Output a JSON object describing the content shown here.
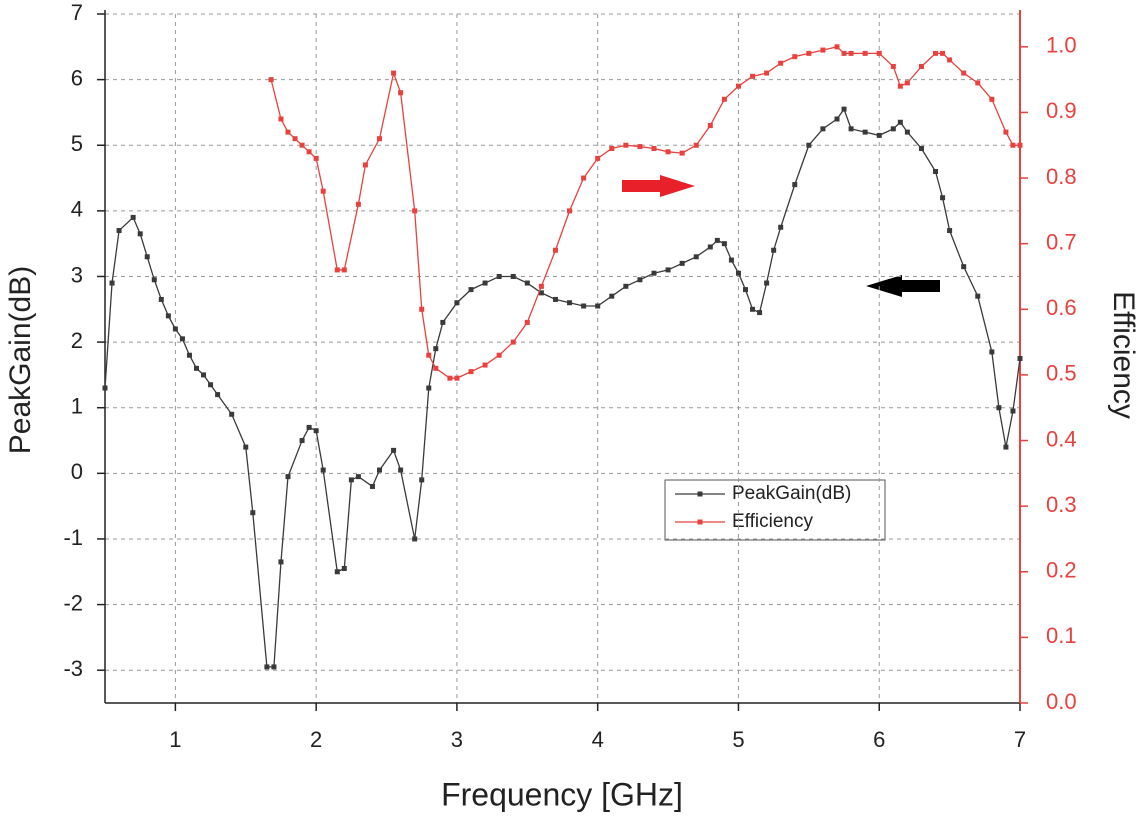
{
  "chart_data": {
    "type": "line",
    "x_label": "Frequency [GHz]",
    "y_label": "PeakGain(dB)",
    "y2_label": "Efficiency",
    "xlim": [
      0.5,
      7
    ],
    "xticks": [
      1,
      2,
      3,
      4,
      5,
      6,
      7
    ],
    "ylim": [
      -3.5,
      7
    ],
    "yticks": [
      -3,
      -2,
      -1,
      0,
      1,
      2,
      3,
      4,
      5,
      6,
      7
    ],
    "y2lim": [
      0,
      1.05
    ],
    "y2ticks": [
      {
        "value": 0,
        "label": "0.0"
      },
      {
        "value": 0.1,
        "label": "0.1"
      },
      {
        "value": 0.2,
        "label": "0.2"
      },
      {
        "value": 0.3,
        "label": "0.3"
      },
      {
        "value": 0.4,
        "label": "0.4"
      },
      {
        "value": 0.5,
        "label": "0.5"
      },
      {
        "value": 0.6,
        "label": "0.6"
      },
      {
        "value": 0.7,
        "label": "0.7"
      },
      {
        "value": 0.8,
        "label": "0.8"
      },
      {
        "value": 0.9,
        "label": "0.9"
      },
      {
        "value": 1,
        "label": "1.0"
      }
    ],
    "grid": true,
    "y2_color": "#e8413e",
    "series": [
      {
        "name": "PeakGain(dB)",
        "color": "#3a3a3a",
        "x": [
          0.5,
          0.55,
          0.6,
          0.7,
          0.75,
          0.8,
          0.85,
          0.9,
          0.95,
          1.0,
          1.05,
          1.1,
          1.15,
          1.2,
          1.25,
          1.3,
          1.4,
          1.5,
          1.55,
          1.65,
          1.7,
          1.75,
          1.8,
          1.9,
          1.95,
          2.0,
          2.05,
          2.15,
          2.2,
          2.25,
          2.3,
          2.4,
          2.45,
          2.55,
          2.6,
          2.7,
          2.75,
          2.8,
          2.85,
          2.9,
          3.0,
          3.1,
          3.2,
          3.3,
          3.4,
          3.5,
          3.6,
          3.7,
          3.8,
          3.9,
          4.0,
          4.1,
          4.2,
          4.3,
          4.4,
          4.5,
          4.6,
          4.7,
          4.8,
          4.85,
          4.9,
          4.95,
          5.0,
          5.05,
          5.1,
          5.15,
          5.2,
          5.25,
          5.3,
          5.4,
          5.5,
          5.6,
          5.7,
          5.75,
          5.8,
          5.9,
          6.0,
          6.1,
          6.15,
          6.2,
          6.3,
          6.4,
          6.45,
          6.5,
          6.6,
          6.7,
          6.8,
          6.85,
          6.9,
          6.95,
          7.0
        ],
        "values": [
          1.3,
          2.9,
          3.7,
          3.9,
          3.65,
          3.3,
          2.95,
          2.65,
          2.4,
          2.2,
          2.05,
          1.8,
          1.6,
          1.5,
          1.35,
          1.2,
          0.9,
          0.4,
          -0.6,
          -2.95,
          -2.95,
          -1.35,
          -0.05,
          0.5,
          0.7,
          0.65,
          0.05,
          -1.5,
          -1.45,
          -0.1,
          -0.05,
          -0.2,
          0.05,
          0.35,
          0.05,
          -1.0,
          -0.1,
          1.3,
          1.9,
          2.3,
          2.6,
          2.8,
          2.9,
          3.0,
          3.0,
          2.9,
          2.75,
          2.65,
          2.6,
          2.55,
          2.55,
          2.7,
          2.85,
          2.95,
          3.05,
          3.1,
          3.2,
          3.3,
          3.45,
          3.55,
          3.5,
          3.25,
          3.05,
          2.8,
          2.5,
          2.45,
          2.9,
          3.4,
          3.75,
          4.4,
          5.0,
          5.25,
          5.4,
          5.55,
          5.25,
          5.2,
          5.15,
          5.25,
          5.35,
          5.2,
          4.95,
          4.6,
          4.2,
          3.7,
          3.15,
          2.7,
          1.85,
          1.0,
          0.4,
          0.95,
          1.75
        ]
      },
      {
        "name": "Efficiency",
        "color": "#e8413e",
        "axis": "y2",
        "x": [
          1.68,
          1.75,
          1.8,
          1.85,
          1.9,
          1.95,
          2.0,
          2.05,
          2.15,
          2.2,
          2.3,
          2.35,
          2.45,
          2.55,
          2.6,
          2.7,
          2.75,
          2.8,
          2.85,
          2.95,
          3.0,
          3.1,
          3.2,
          3.3,
          3.4,
          3.5,
          3.6,
          3.7,
          3.8,
          3.9,
          4.0,
          4.1,
          4.2,
          4.3,
          4.4,
          4.5,
          4.6,
          4.7,
          4.8,
          4.9,
          5.0,
          5.1,
          5.2,
          5.3,
          5.4,
          5.5,
          5.6,
          5.7,
          5.75,
          5.8,
          5.9,
          6.0,
          6.1,
          6.15,
          6.2,
          6.3,
          6.4,
          6.45,
          6.5,
          6.6,
          6.7,
          6.8,
          6.9,
          6.95,
          7.0
        ],
        "values": [
          0.95,
          0.89,
          0.87,
          0.86,
          0.85,
          0.84,
          0.83,
          0.78,
          0.66,
          0.66,
          0.76,
          0.82,
          0.86,
          0.96,
          0.93,
          0.75,
          0.6,
          0.53,
          0.51,
          0.495,
          0.495,
          0.505,
          0.515,
          0.53,
          0.55,
          0.58,
          0.635,
          0.69,
          0.75,
          0.8,
          0.83,
          0.845,
          0.85,
          0.848,
          0.845,
          0.84,
          0.838,
          0.85,
          0.88,
          0.92,
          0.94,
          0.955,
          0.96,
          0.975,
          0.985,
          0.99,
          0.995,
          1.0,
          0.99,
          0.99,
          0.99,
          0.99,
          0.97,
          0.94,
          0.945,
          0.97,
          0.99,
          0.99,
          0.98,
          0.96,
          0.945,
          0.92,
          0.87,
          0.85,
          0.85
        ]
      }
    ]
  }
}
